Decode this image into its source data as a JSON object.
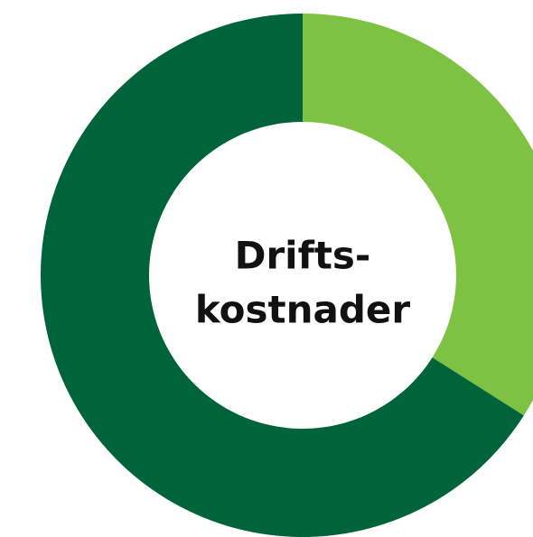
{
  "chart_data": {
    "type": "donut",
    "title_lines": [
      "Drifts-",
      "kostnader"
    ],
    "categories": [
      null,
      null
    ],
    "values": [
      34,
      66
    ],
    "colors": [
      "#7dc242",
      "#00643a"
    ]
  }
}
